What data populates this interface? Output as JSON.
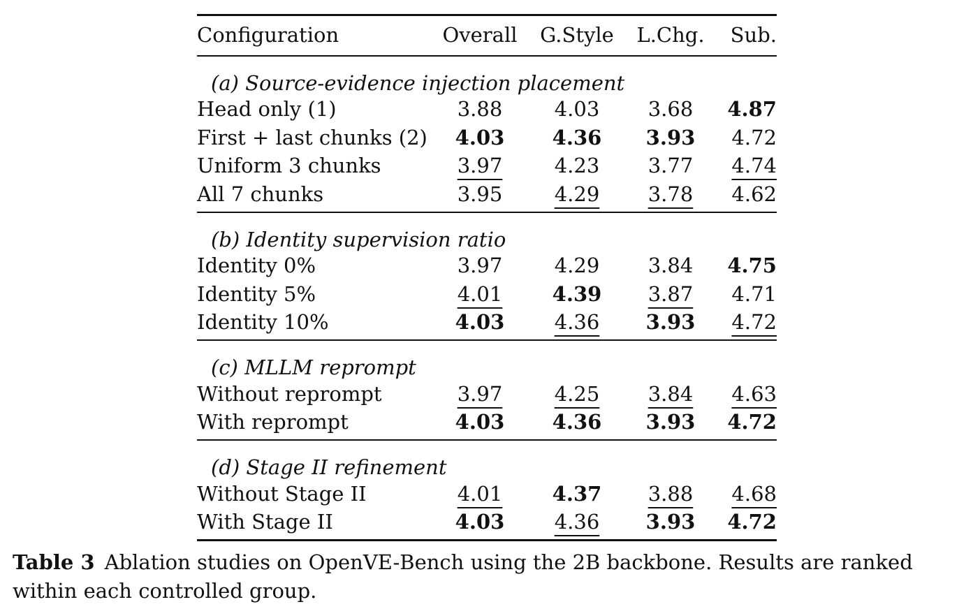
{
  "table": {
    "headers": {
      "configuration": "Configuration",
      "overall": "Overall",
      "gstyle": "G.Style",
      "lchg": "L.Chg.",
      "sub": "Sub."
    },
    "groups": [
      {
        "title": "(a) Source-evidence injection placement",
        "rows": [
          {
            "label": "Head only (1)",
            "values": [
              {
                "v": "3.88",
                "mark": ""
              },
              {
                "v": "4.03",
                "mark": ""
              },
              {
                "v": "3.68",
                "mark": ""
              },
              {
                "v": "4.87",
                "mark": "best"
              }
            ]
          },
          {
            "label": "First + last chunks (2)",
            "values": [
              {
                "v": "4.03",
                "mark": "best"
              },
              {
                "v": "4.36",
                "mark": "best"
              },
              {
                "v": "3.93",
                "mark": "best"
              },
              {
                "v": "4.72",
                "mark": ""
              }
            ]
          },
          {
            "label": "Uniform 3 chunks",
            "values": [
              {
                "v": "3.97",
                "mark": "second"
              },
              {
                "v": "4.23",
                "mark": ""
              },
              {
                "v": "3.77",
                "mark": ""
              },
              {
                "v": "4.74",
                "mark": "second"
              }
            ]
          },
          {
            "label": "All 7 chunks",
            "values": [
              {
                "v": "3.95",
                "mark": ""
              },
              {
                "v": "4.29",
                "mark": "second"
              },
              {
                "v": "3.78",
                "mark": "second"
              },
              {
                "v": "4.62",
                "mark": ""
              }
            ]
          }
        ]
      },
      {
        "title": "(b) Identity supervision ratio",
        "rows": [
          {
            "label": "Identity 0%",
            "values": [
              {
                "v": "3.97",
                "mark": ""
              },
              {
                "v": "4.29",
                "mark": ""
              },
              {
                "v": "3.84",
                "mark": ""
              },
              {
                "v": "4.75",
                "mark": "best"
              }
            ]
          },
          {
            "label": "Identity 5%",
            "values": [
              {
                "v": "4.01",
                "mark": "second"
              },
              {
                "v": "4.39",
                "mark": "best"
              },
              {
                "v": "3.87",
                "mark": "second"
              },
              {
                "v": "4.71",
                "mark": ""
              }
            ]
          },
          {
            "label": "Identity 10%",
            "values": [
              {
                "v": "4.03",
                "mark": "best"
              },
              {
                "v": "4.36",
                "mark": "second"
              },
              {
                "v": "3.93",
                "mark": "best"
              },
              {
                "v": "4.72",
                "mark": "second"
              }
            ]
          }
        ]
      },
      {
        "title": "(c) MLLM reprompt",
        "rows": [
          {
            "label": "Without reprompt",
            "values": [
              {
                "v": "3.97",
                "mark": "second"
              },
              {
                "v": "4.25",
                "mark": "second"
              },
              {
                "v": "3.84",
                "mark": "second"
              },
              {
                "v": "4.63",
                "mark": "second"
              }
            ]
          },
          {
            "label": "With reprompt",
            "values": [
              {
                "v": "4.03",
                "mark": "best"
              },
              {
                "v": "4.36",
                "mark": "best"
              },
              {
                "v": "3.93",
                "mark": "best"
              },
              {
                "v": "4.72",
                "mark": "best"
              }
            ]
          }
        ]
      },
      {
        "title": "(d) Stage II refinement",
        "rows": [
          {
            "label": "Without Stage II",
            "values": [
              {
                "v": "4.01",
                "mark": "second"
              },
              {
                "v": "4.37",
                "mark": "best"
              },
              {
                "v": "3.88",
                "mark": "second"
              },
              {
                "v": "4.68",
                "mark": "second"
              }
            ]
          },
          {
            "label": "With Stage II",
            "values": [
              {
                "v": "4.03",
                "mark": "best"
              },
              {
                "v": "4.36",
                "mark": "second"
              },
              {
                "v": "3.93",
                "mark": "best"
              },
              {
                "v": "4.72",
                "mark": "best"
              }
            ]
          }
        ]
      }
    ]
  },
  "caption": {
    "label": "Table 3",
    "text": "Ablation studies on OpenVE-Bench using the 2B backbone. Results are ranked within each controlled group."
  }
}
